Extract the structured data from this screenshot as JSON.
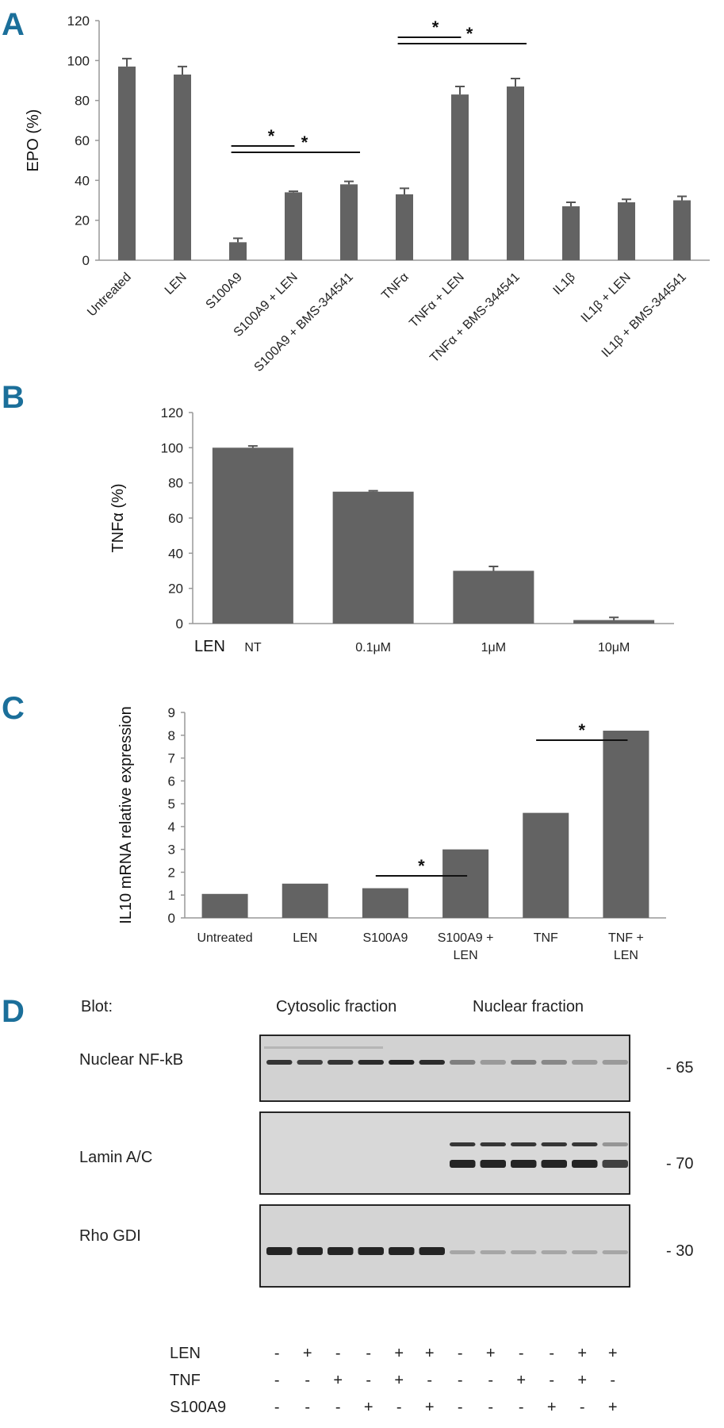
{
  "panels": {
    "a": "A",
    "b": "B",
    "c": "C",
    "d": "D"
  },
  "chart_data": [
    {
      "id": "A",
      "type": "bar",
      "ylabel": "EPO (%)",
      "ylim": [
        0,
        120
      ],
      "yticks": [
        0,
        20,
        40,
        60,
        80,
        100,
        120
      ],
      "categories": [
        "Untreated",
        "LEN",
        "S100A9",
        "S100A9 + LEN",
        "S100A9 + BMS-344541",
        "TNFα",
        "TNFα + LEN",
        "TNFα + BMS-344541",
        "IL1β",
        "IL1β + LEN",
        "IL1β + BMS-344541"
      ],
      "values": [
        97,
        93,
        9,
        34,
        38,
        33,
        83,
        87,
        27,
        29,
        30
      ],
      "errors": [
        4,
        4,
        2,
        0.5,
        1.5,
        3,
        4,
        4,
        2,
        1.5,
        2
      ],
      "significance": [
        {
          "from": 2,
          "to": 3,
          "label": "*"
        },
        {
          "from": 2,
          "to": 4,
          "label": "*"
        },
        {
          "from": 5,
          "to": 6,
          "label": "*"
        },
        {
          "from": 5,
          "to": 7,
          "label": "*"
        }
      ]
    },
    {
      "id": "B",
      "type": "bar",
      "ylabel": "TNFα (%)",
      "xlabel": "LEN",
      "ylim": [
        0,
        120
      ],
      "yticks": [
        0,
        20,
        40,
        60,
        80,
        100,
        120
      ],
      "categories": [
        "NT",
        "0.1μM",
        "1μM",
        "10μM"
      ],
      "values": [
        100,
        75,
        30,
        2
      ],
      "errors": [
        1,
        0.5,
        2.5,
        1.5
      ]
    },
    {
      "id": "C",
      "type": "bar",
      "ylabel": "IL10 mRNA relative expression",
      "ylim": [
        0,
        9
      ],
      "yticks": [
        0,
        1,
        2,
        3,
        4,
        5,
        6,
        7,
        8,
        9
      ],
      "categories": [
        "Untreated",
        "LEN",
        "S100A9",
        "S100A9 + LEN",
        "TNF",
        "TNF + LEN"
      ],
      "values": [
        1.05,
        1.5,
        1.3,
        3.0,
        4.6,
        8.2
      ],
      "significance": [
        {
          "from": 2,
          "to": 3,
          "label": "*"
        },
        {
          "from": 4,
          "to": 5,
          "label": "*"
        }
      ]
    }
  ],
  "blot": {
    "header": "Blot:",
    "cytosolic": "Cytosolic fraction",
    "nuclear": "Nuclear fraction",
    "rows": [
      {
        "label": "Nuclear NF-kB",
        "mw": "- 65"
      },
      {
        "label": "Lamin A/C",
        "mw": "- 70"
      },
      {
        "label": "Rho GDI",
        "mw": "- 30"
      }
    ],
    "treatments": [
      {
        "label": "LEN",
        "signs": [
          "-",
          "+",
          "-",
          "-",
          "+",
          "+",
          "-",
          "+",
          "-",
          "-",
          "+",
          "+"
        ]
      },
      {
        "label": "TNF",
        "signs": [
          "-",
          "-",
          "+",
          "-",
          "+",
          "-",
          "-",
          "-",
          "+",
          "-",
          "+",
          "-"
        ]
      },
      {
        "label": "S100A9",
        "signs": [
          "-",
          "-",
          "-",
          "+",
          "-",
          "+",
          "-",
          "-",
          "-",
          "+",
          "-",
          "+"
        ]
      }
    ]
  }
}
